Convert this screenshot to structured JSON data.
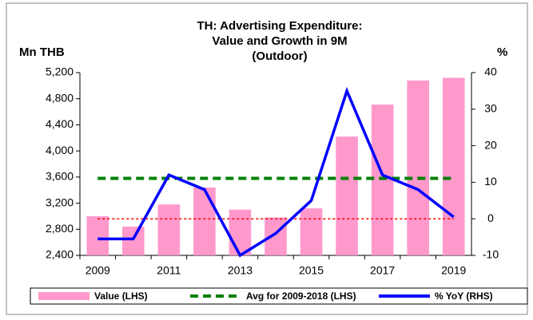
{
  "chart_data": {
    "type": "bar",
    "title": [
      "TH: Advertising Expenditure:",
      "Value and Growth in 9M",
      "(Outdoor)"
    ],
    "y_label": "Mn THB",
    "y2_label": "%",
    "categories": [
      "2009",
      null,
      "2011",
      null,
      "2013",
      null,
      "2015",
      null,
      "2017",
      null,
      "2019"
    ],
    "series": [
      {
        "name": "Value (LHS)",
        "type": "bar",
        "color": "#ff99cc",
        "axis": "y",
        "values": [
          3000,
          2840,
          3180,
          3440,
          3100,
          2980,
          3120,
          4220,
          4710,
          5080,
          5120
        ]
      },
      {
        "name": "Avg for 2009-2018 (LHS)",
        "type": "line",
        "dashed": true,
        "color": "#008000",
        "axis": "y",
        "values": [
          3580,
          3580,
          3580,
          3580,
          3580,
          3580,
          3580,
          3580,
          3580,
          3580,
          3580
        ]
      },
      {
        "name": "% YoY (RHS)",
        "type": "line",
        "color": "#0000ff",
        "axis": "y2",
        "values": [
          -5.5,
          -5.5,
          12,
          8,
          -10,
          -4,
          5,
          35,
          12,
          8,
          0.5
        ]
      }
    ],
    "reference_line": {
      "axis": "y2",
      "value": 0,
      "color": "#ff0000"
    },
    "ylim": [
      2400,
      5200
    ],
    "yticks": [
      {
        "value": 2400,
        "label": "2,400"
      },
      {
        "value": 2800,
        "label": "2,800"
      },
      {
        "value": 3200,
        "label": "3,200"
      },
      {
        "value": 3600,
        "label": "3,600"
      },
      {
        "value": 4000,
        "label": "4,000"
      },
      {
        "value": 4400,
        "label": "4,400"
      },
      {
        "value": 4800,
        "label": "4,800"
      },
      {
        "value": 5200,
        "label": "5,200"
      }
    ],
    "y2lim": [
      -10,
      40
    ],
    "y2ticks": [
      -10,
      0,
      10,
      20,
      30,
      40
    ],
    "legend": "bottom"
  }
}
